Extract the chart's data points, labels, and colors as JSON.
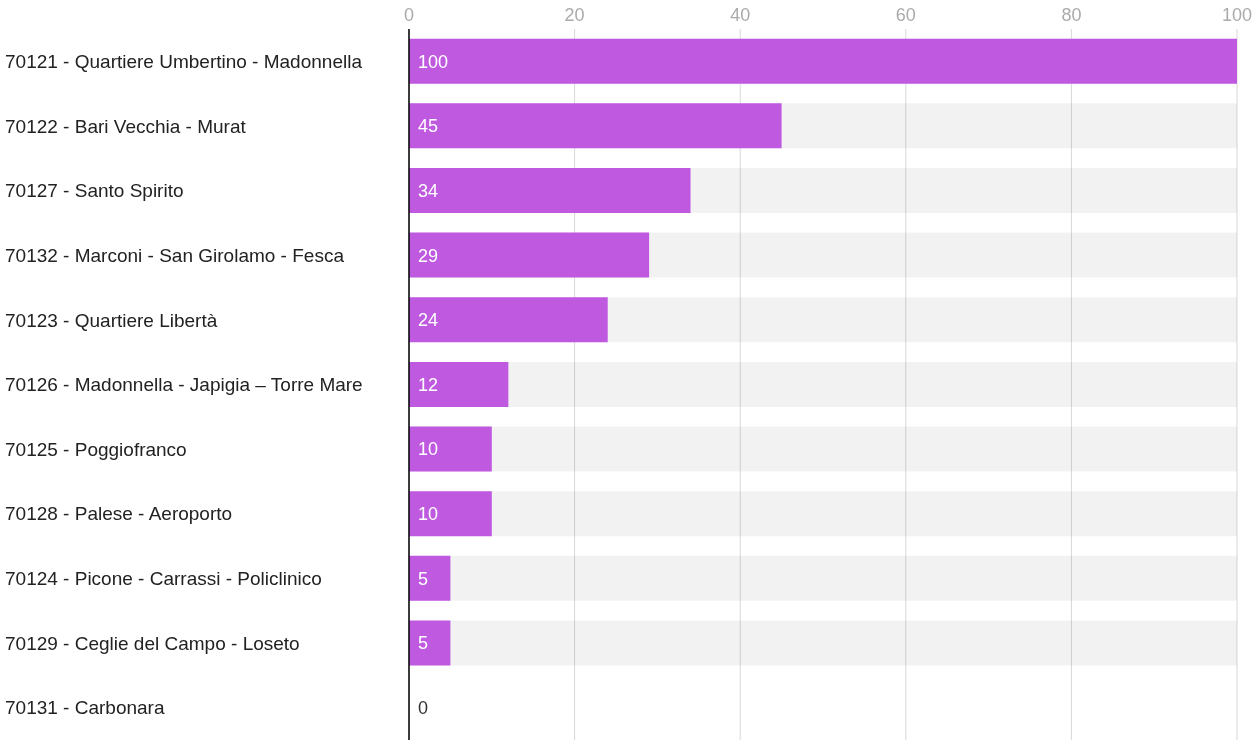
{
  "chart_data": {
    "type": "bar",
    "orientation": "horizontal",
    "categories": [
      "70121 - Quartiere Umbertino - Madonnella",
      "70122 - Bari Vecchia - Murat",
      "70127 - Santo Spirito",
      "70132 - Marconi - San Girolamo - Fesca",
      "70123 - Quartiere Libertà",
      "70126 - Madonnella - Japigia – Torre Mare",
      "70125 - Poggiofranco",
      "70128 - Palese - Aeroporto",
      "70124 - Picone - Carrassi - Policlinico",
      "70129 - Ceglie del Campo - Loseto",
      "70131 - Carbonara"
    ],
    "values": [
      100,
      45,
      34,
      29,
      24,
      12,
      10,
      10,
      5,
      5,
      0
    ],
    "color": "#bf5ae0",
    "xlim": [
      0,
      100
    ],
    "xticks": [
      0,
      20,
      40,
      60,
      80,
      100
    ],
    "grid": "x",
    "data_labels": true
  }
}
